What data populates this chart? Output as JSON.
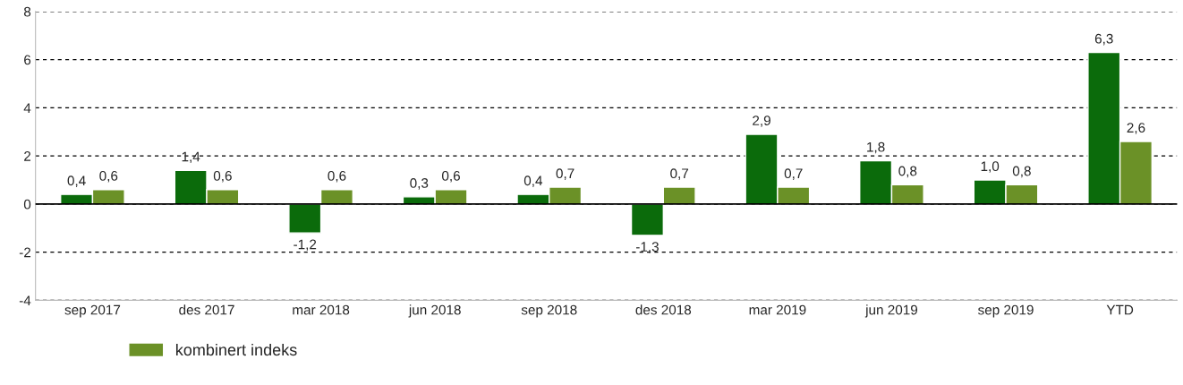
{
  "chart_data": {
    "type": "bar",
    "categories": [
      "sep 2017",
      "des 2017",
      "mar 2018",
      "jun 2018",
      "sep 2018",
      "des 2018",
      "mar 2019",
      "jun 2019",
      "sep 2019",
      "YTD"
    ],
    "series": [
      {
        "color": "#0b6b0b",
        "values": [
          0.4,
          1.4,
          -1.2,
          0.3,
          0.4,
          -1.3,
          2.9,
          1.8,
          1.0,
          6.3
        ],
        "value_labels": [
          "0,4",
          "1,4",
          "-1,2",
          "0,3",
          "0,4",
          "-1,3",
          "2,9",
          "1,8",
          "1,0",
          "6,3"
        ]
      },
      {
        "name": "kombinert indeks",
        "color": "#6b9127",
        "values": [
          0.6,
          0.6,
          0.6,
          0.6,
          0.7,
          0.7,
          0.7,
          0.8,
          0.8,
          2.6
        ],
        "value_labels": [
          "0,6",
          "0,6",
          "0,6",
          "0,6",
          "0,7",
          "0,7",
          "0,7",
          "0,8",
          "0,8",
          "2,6"
        ]
      }
    ],
    "ylim": [
      -4,
      8
    ],
    "yticks": [
      -4,
      -2,
      0,
      2,
      4,
      6,
      8
    ],
    "grid": "y",
    "legend": "bottom"
  }
}
